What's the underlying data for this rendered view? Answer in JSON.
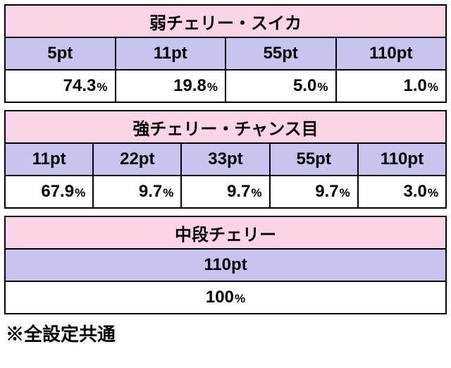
{
  "sections": [
    {
      "title": "弱チェリー・スイカ",
      "headers": [
        "5pt",
        "11pt",
        "55pt",
        "110pt"
      ],
      "values": [
        "74.3",
        "19.8",
        "5.0",
        "1.0"
      ],
      "single": false
    },
    {
      "title": "強チェリー・チャンス目",
      "headers": [
        "11pt",
        "22pt",
        "33pt",
        "55pt",
        "110pt"
      ],
      "values": [
        "67.9",
        "9.7",
        "9.7",
        "9.7",
        "3.0"
      ],
      "single": false
    },
    {
      "title": "中段チェリー",
      "headers": [
        "110pt"
      ],
      "values": [
        "100"
      ],
      "single": true
    }
  ],
  "pct_suffix": "%",
  "note": "※全設定共通",
  "colors": {
    "title_bg": "#fcd4e8",
    "head_bg": "#c7c5ef",
    "data_bg": "#ffffff",
    "border": "#000000"
  }
}
